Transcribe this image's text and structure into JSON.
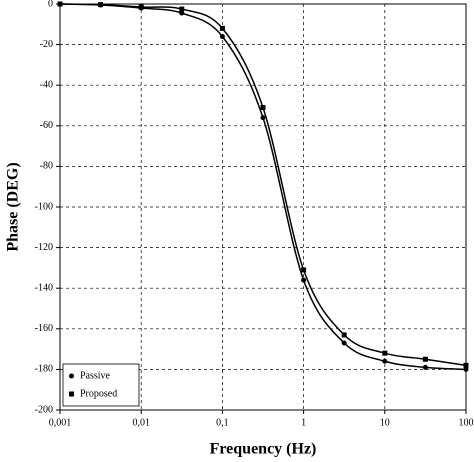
{
  "chart_data": {
    "type": "line",
    "xlabel": "Frequency (Hz)",
    "ylabel": "Phase (DEG)",
    "xscale": "log",
    "x": [
      0.001,
      0.00316,
      0.01,
      0.0316,
      0.1,
      0.316,
      1,
      3.16,
      10,
      31.6,
      100
    ],
    "series": [
      {
        "name": "Passive",
        "color": "#000000",
        "marker": "circle",
        "values": [
          0,
          -0.5,
          -2,
          -4.5,
          -16,
          -56,
          -136,
          -167,
          -176,
          -179,
          -180
        ]
      },
      {
        "name": "Proposed",
        "color": "#000000",
        "marker": "square",
        "values": [
          0,
          -0.3,
          -1.5,
          -2.5,
          -12,
          -51,
          -131,
          -163,
          -172,
          -175,
          -178
        ]
      }
    ],
    "xlim": [
      0.001,
      100
    ],
    "xticks": [
      {
        "value": 0.001,
        "label": "0,001"
      },
      {
        "value": 0.01,
        "label": "0,01"
      },
      {
        "value": 0.1,
        "label": "0,1"
      },
      1,
      10,
      100
    ],
    "ylim": [
      -200,
      0
    ],
    "yticks": [
      0,
      -20,
      -40,
      -60,
      -80,
      -100,
      -120,
      -140,
      -160,
      -180,
      -200
    ],
    "grid": true,
    "legend": "lower left"
  }
}
